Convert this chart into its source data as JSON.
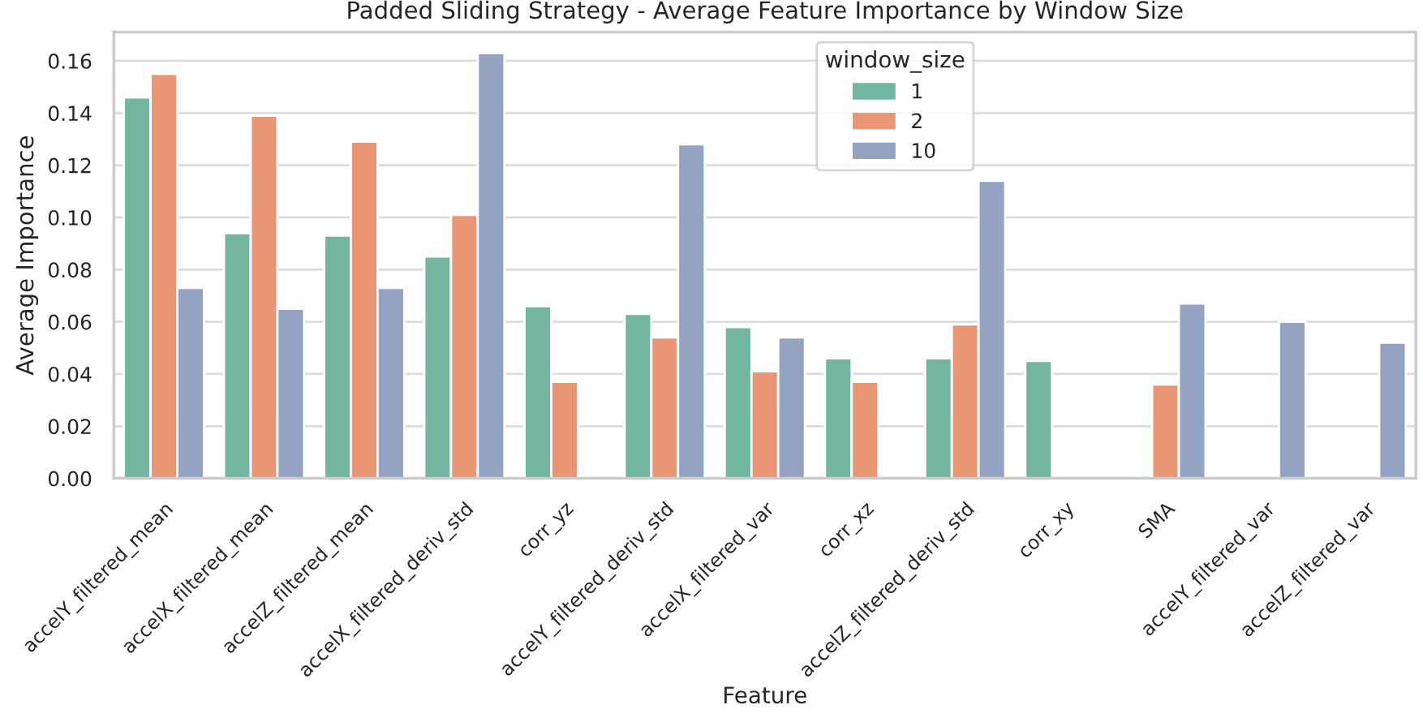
{
  "chart_data": {
    "type": "bar",
    "title": "Padded Sliding Strategy - Average Feature Importance by Window Size",
    "xlabel": "Feature",
    "ylabel": "Average Importance",
    "legend_title": "window_size",
    "categories": [
      "accelY_filtered_mean",
      "accelX_filtered_mean",
      "accelZ_filtered_mean",
      "accelX_filtered_deriv_std",
      "corr_yz",
      "accelY_filtered_deriv_std",
      "accelX_filtered_var",
      "corr_xz",
      "accelZ_filtered_deriv_std",
      "corr_xy",
      "SMA",
      "accelY_filtered_var",
      "accelZ_filtered_var"
    ],
    "series": [
      {
        "name": "1",
        "color": "#72b6a1",
        "values": [
          0.146,
          0.094,
          0.093,
          0.085,
          0.066,
          0.063,
          0.058,
          0.046,
          0.046,
          0.045,
          null,
          null,
          null
        ]
      },
      {
        "name": "2",
        "color": "#e99675",
        "values": [
          0.155,
          0.139,
          0.129,
          0.101,
          0.037,
          0.054,
          0.041,
          0.037,
          0.059,
          null,
          0.036,
          null,
          null
        ]
      },
      {
        "name": "10",
        "color": "#95a3c3",
        "values": [
          0.073,
          0.065,
          0.073,
          0.163,
          null,
          0.128,
          0.054,
          null,
          0.114,
          null,
          0.067,
          0.06,
          0.052
        ]
      }
    ],
    "ylim": [
      0,
      0.171
    ],
    "yticks": [
      {
        "value": 0,
        "label": "0.00"
      },
      {
        "value": 0.02,
        "label": "0.02"
      },
      {
        "value": 0.04,
        "label": "0.04"
      },
      {
        "value": 0.06,
        "label": "0.06"
      },
      {
        "value": 0.08,
        "label": "0.08"
      },
      {
        "value": 0.1,
        "label": "0.10"
      },
      {
        "value": 0.12,
        "label": "0.12"
      },
      {
        "value": 0.14,
        "label": "0.14"
      },
      {
        "value": 0.16,
        "label": "0.16"
      }
    ],
    "grid": "y",
    "legend": "top"
  }
}
